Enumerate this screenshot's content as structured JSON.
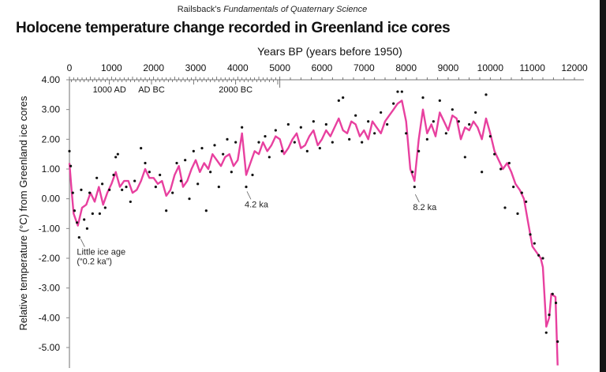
{
  "credit": {
    "prefix": "Railsback's ",
    "italic": "Fundamentals of Quaternary Science"
  },
  "chart_data": {
    "type": "line",
    "title": "Holocene temperature change recorded in Greenland ice cores",
    "xlabel": "Years BP (years before 1950)",
    "ylabel": "Relative temperature (°C) from Greenland ice cores",
    "xlim": [
      0,
      12000
    ],
    "ylim": [
      -5.6,
      4.0
    ],
    "x_axis_position": "top",
    "x_ticks": [
      "0",
      "1000",
      "2000",
      "3000",
      "4000",
      "5000",
      "6000",
      "7000",
      "8000",
      "9000",
      "10000",
      "11000",
      "12000"
    ],
    "y_ticks": [
      "4.00",
      "3.00",
      "2.00",
      "1.00",
      "0.00",
      "-1.00",
      "-2.00",
      "-3.00",
      "-4.00",
      "-5.00"
    ],
    "calendar_labels": [
      {
        "year": 950,
        "text": "1000 AD"
      },
      {
        "year": 1950,
        "text": "AD BC"
      },
      {
        "year": 3950,
        "text": "2000 BC"
      }
    ],
    "grid": false,
    "colors": {
      "line": "#e8409f",
      "points": "#111111"
    },
    "series": [
      {
        "kind": "smoothed-line",
        "points": [
          [
            0,
            1.2
          ],
          [
            50,
            0.3
          ],
          [
            100,
            -0.5
          ],
          [
            200,
            -0.9
          ],
          [
            250,
            -0.6
          ],
          [
            300,
            -0.3
          ],
          [
            400,
            -0.2
          ],
          [
            500,
            0.2
          ],
          [
            600,
            -0.1
          ],
          [
            700,
            0.4
          ],
          [
            800,
            -0.2
          ],
          [
            900,
            0.2
          ],
          [
            1000,
            0.5
          ],
          [
            1100,
            0.9
          ],
          [
            1200,
            0.4
          ],
          [
            1300,
            0.6
          ],
          [
            1400,
            0.6
          ],
          [
            1500,
            0.2
          ],
          [
            1600,
            0.3
          ],
          [
            1700,
            0.6
          ],
          [
            1800,
            1.0
          ],
          [
            1900,
            0.7
          ],
          [
            2000,
            0.7
          ],
          [
            2100,
            0.5
          ],
          [
            2200,
            0.6
          ],
          [
            2300,
            0.1
          ],
          [
            2400,
            0.3
          ],
          [
            2500,
            0.8
          ],
          [
            2600,
            1.1
          ],
          [
            2700,
            0.4
          ],
          [
            2800,
            0.6
          ],
          [
            2900,
            1.0
          ],
          [
            3000,
            1.3
          ],
          [
            3100,
            0.9
          ],
          [
            3200,
            1.2
          ],
          [
            3300,
            1.0
          ],
          [
            3400,
            1.5
          ],
          [
            3500,
            1.3
          ],
          [
            3600,
            1.1
          ],
          [
            3700,
            1.4
          ],
          [
            3800,
            1.5
          ],
          [
            3900,
            1.1
          ],
          [
            4000,
            1.3
          ],
          [
            4100,
            2.2
          ],
          [
            4200,
            0.8
          ],
          [
            4300,
            1.2
          ],
          [
            4400,
            1.6
          ],
          [
            4500,
            1.5
          ],
          [
            4600,
            1.9
          ],
          [
            4700,
            1.6
          ],
          [
            4800,
            1.8
          ],
          [
            4900,
            2.1
          ],
          [
            5000,
            2.0
          ],
          [
            5100,
            1.5
          ],
          [
            5200,
            1.7
          ],
          [
            5300,
            2.0
          ],
          [
            5400,
            2.2
          ],
          [
            5500,
            1.7
          ],
          [
            5600,
            1.8
          ],
          [
            5700,
            2.1
          ],
          [
            5800,
            2.3
          ],
          [
            5900,
            1.8
          ],
          [
            6000,
            2.0
          ],
          [
            6100,
            2.3
          ],
          [
            6200,
            2.1
          ],
          [
            6300,
            2.4
          ],
          [
            6400,
            2.7
          ],
          [
            6500,
            2.3
          ],
          [
            6600,
            2.2
          ],
          [
            6700,
            2.6
          ],
          [
            6800,
            2.5
          ],
          [
            6900,
            2.1
          ],
          [
            7000,
            2.3
          ],
          [
            7100,
            2.0
          ],
          [
            7200,
            2.6
          ],
          [
            7300,
            2.4
          ],
          [
            7400,
            2.2
          ],
          [
            7500,
            2.6
          ],
          [
            7600,
            2.8
          ],
          [
            7700,
            3.0
          ],
          [
            7800,
            3.2
          ],
          [
            7900,
            3.3
          ],
          [
            8000,
            2.6
          ],
          [
            8100,
            1.0
          ],
          [
            8200,
            0.6
          ],
          [
            8300,
            2.0
          ],
          [
            8400,
            3.0
          ],
          [
            8500,
            2.2
          ],
          [
            8600,
            2.5
          ],
          [
            8700,
            2.1
          ],
          [
            8800,
            2.9
          ],
          [
            8900,
            2.6
          ],
          [
            9000,
            2.3
          ],
          [
            9100,
            2.8
          ],
          [
            9200,
            2.7
          ],
          [
            9300,
            2.0
          ],
          [
            9400,
            2.4
          ],
          [
            9500,
            2.3
          ],
          [
            9600,
            2.6
          ],
          [
            9700,
            2.4
          ],
          [
            9800,
            2.0
          ],
          [
            9900,
            2.7
          ],
          [
            10000,
            2.2
          ],
          [
            10100,
            1.6
          ],
          [
            10200,
            1.3
          ],
          [
            10300,
            1.0
          ],
          [
            10400,
            1.2
          ],
          [
            10500,
            0.9
          ],
          [
            10600,
            0.5
          ],
          [
            10700,
            0.3
          ],
          [
            10800,
            0.0
          ],
          [
            10900,
            -0.8
          ],
          [
            11000,
            -1.6
          ],
          [
            11100,
            -1.8
          ],
          [
            11200,
            -2.0
          ],
          [
            11250,
            -2.3
          ],
          [
            11330,
            -4.3
          ],
          [
            11400,
            -4.0
          ],
          [
            11450,
            -3.2
          ],
          [
            11550,
            -3.3
          ],
          [
            11600,
            -5.6
          ]
        ]
      },
      {
        "kind": "data-points",
        "points": [
          [
            0,
            1.6
          ],
          [
            30,
            1.1
          ],
          [
            80,
            0.2
          ],
          [
            120,
            -0.4
          ],
          [
            180,
            -0.8
          ],
          [
            230,
            -1.3
          ],
          [
            280,
            0.3
          ],
          [
            350,
            -0.7
          ],
          [
            420,
            -1.0
          ],
          [
            480,
            0.2
          ],
          [
            550,
            -0.5
          ],
          [
            650,
            0.7
          ],
          [
            720,
            -0.5
          ],
          [
            780,
            0.5
          ],
          [
            850,
            -0.3
          ],
          [
            950,
            0.3
          ],
          [
            1050,
            0.8
          ],
          [
            1100,
            1.4
          ],
          [
            1150,
            1.5
          ],
          [
            1250,
            0.3
          ],
          [
            1350,
            0.4
          ],
          [
            1450,
            -0.1
          ],
          [
            1550,
            0.6
          ],
          [
            1700,
            1.7
          ],
          [
            1800,
            1.2
          ],
          [
            1900,
            0.9
          ],
          [
            2050,
            0.4
          ],
          [
            2150,
            0.8
          ],
          [
            2300,
            -0.4
          ],
          [
            2450,
            0.2
          ],
          [
            2550,
            1.2
          ],
          [
            2650,
            0.6
          ],
          [
            2750,
            1.3
          ],
          [
            2850,
            0.0
          ],
          [
            2950,
            1.6
          ],
          [
            3050,
            0.5
          ],
          [
            3150,
            1.7
          ],
          [
            3250,
            -0.4
          ],
          [
            3350,
            0.9
          ],
          [
            3450,
            1.8
          ],
          [
            3550,
            0.4
          ],
          [
            3650,
            1.5
          ],
          [
            3750,
            2.0
          ],
          [
            3850,
            0.9
          ],
          [
            3950,
            1.9
          ],
          [
            4100,
            2.4
          ],
          [
            4200,
            0.4
          ],
          [
            4350,
            0.8
          ],
          [
            4500,
            1.9
          ],
          [
            4650,
            2.1
          ],
          [
            4750,
            1.4
          ],
          [
            4900,
            2.3
          ],
          [
            5050,
            1.6
          ],
          [
            5200,
            2.5
          ],
          [
            5350,
            1.9
          ],
          [
            5500,
            2.4
          ],
          [
            5650,
            1.6
          ],
          [
            5800,
            2.6
          ],
          [
            5950,
            1.7
          ],
          [
            6100,
            2.5
          ],
          [
            6250,
            1.9
          ],
          [
            6400,
            3.3
          ],
          [
            6500,
            3.4
          ],
          [
            6650,
            2.0
          ],
          [
            6800,
            2.8
          ],
          [
            6950,
            1.9
          ],
          [
            7100,
            2.6
          ],
          [
            7250,
            2.2
          ],
          [
            7400,
            2.9
          ],
          [
            7550,
            2.5
          ],
          [
            7700,
            3.2
          ],
          [
            7800,
            3.6
          ],
          [
            7900,
            3.6
          ],
          [
            8000,
            2.2
          ],
          [
            8150,
            0.9
          ],
          [
            8200,
            0.4
          ],
          [
            8300,
            1.6
          ],
          [
            8400,
            3.4
          ],
          [
            8500,
            2.0
          ],
          [
            8650,
            2.6
          ],
          [
            8800,
            3.3
          ],
          [
            8950,
            2.2
          ],
          [
            9100,
            3.0
          ],
          [
            9250,
            2.6
          ],
          [
            9400,
            1.4
          ],
          [
            9500,
            2.5
          ],
          [
            9650,
            2.9
          ],
          [
            9800,
            0.9
          ],
          [
            9900,
            3.5
          ],
          [
            10000,
            2.1
          ],
          [
            10100,
            1.5
          ],
          [
            10250,
            1.0
          ],
          [
            10350,
            -0.3
          ],
          [
            10450,
            1.2
          ],
          [
            10550,
            0.4
          ],
          [
            10650,
            -0.5
          ],
          [
            10750,
            0.2
          ],
          [
            10850,
            -0.1
          ],
          [
            10950,
            -1.2
          ],
          [
            11050,
            -1.5
          ],
          [
            11150,
            -1.9
          ],
          [
            11250,
            -2.0
          ],
          [
            11330,
            -4.5
          ],
          [
            11400,
            -3.9
          ],
          [
            11480,
            -3.2
          ],
          [
            11560,
            -3.5
          ],
          [
            11600,
            -4.8
          ]
        ]
      }
    ],
    "annotations": [
      {
        "year": 250,
        "temp": -1.3,
        "text_lines": [
          "Little ice age",
          "(“0.2 ka”)"
        ]
      },
      {
        "year": 4200,
        "temp": 0.3,
        "text_lines": [
          "4.2 ka"
        ]
      },
      {
        "year": 8200,
        "temp": 0.2,
        "text_lines": [
          "8.2 ka"
        ]
      }
    ]
  }
}
